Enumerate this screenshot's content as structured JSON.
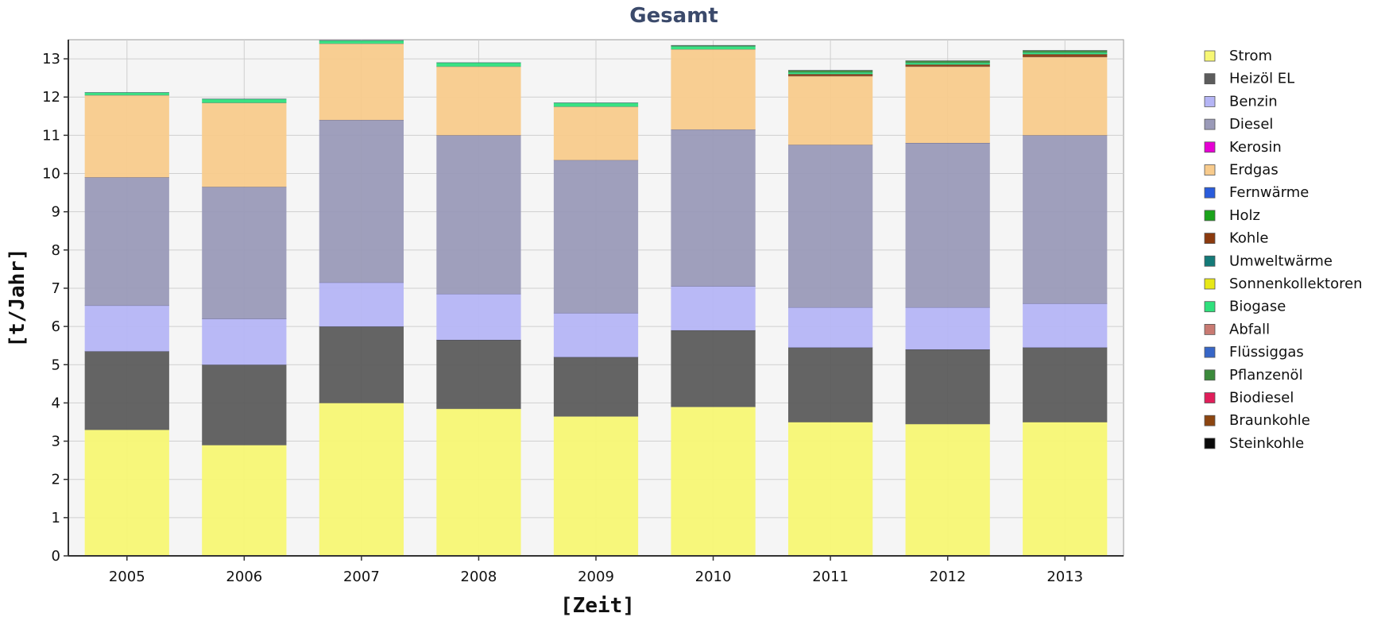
{
  "chart_data": {
    "type": "bar",
    "stacked": true,
    "title": "Gesamt",
    "xlabel": "[Zeit]",
    "ylabel": "[t/Jahr]",
    "ylim": [
      0,
      13.5
    ],
    "yticks": [
      0,
      1,
      2,
      3,
      4,
      5,
      6,
      7,
      8,
      9,
      10,
      11,
      12,
      13
    ],
    "grid": true,
    "legend_position": "right",
    "categories": [
      "2005",
      "2006",
      "2007",
      "2008",
      "2009",
      "2010",
      "2011",
      "2012",
      "2013"
    ],
    "series": [
      {
        "name": "Strom",
        "color": "#f7f774",
        "values": [
          3.3,
          2.9,
          4.0,
          3.85,
          3.65,
          3.9,
          3.5,
          3.45,
          3.5
        ]
      },
      {
        "name": "Heizöl EL",
        "color": "#5c5c5c",
        "values": [
          2.05,
          2.1,
          2.0,
          1.8,
          1.55,
          2.0,
          1.95,
          1.95,
          1.95
        ]
      },
      {
        "name": "Benzin",
        "color": "#b5b5f5",
        "values": [
          1.2,
          1.2,
          1.15,
          1.2,
          1.15,
          1.15,
          1.05,
          1.1,
          1.15
        ]
      },
      {
        "name": "Diesel",
        "color": "#9a9ab8",
        "values": [
          3.35,
          3.45,
          4.25,
          4.15,
          4.0,
          4.1,
          4.25,
          4.3,
          4.4
        ]
      },
      {
        "name": "Kerosin",
        "color": "#e600d4",
        "values": [
          0,
          0,
          0,
          0,
          0,
          0,
          0,
          0,
          0
        ]
      },
      {
        "name": "Erdgas",
        "color": "#f8cb8c",
        "values": [
          2.15,
          2.2,
          2.0,
          1.8,
          1.4,
          2.1,
          1.8,
          2.0,
          2.05
        ]
      },
      {
        "name": "Fernwärme",
        "color": "#2a5cdc",
        "values": [
          0,
          0,
          0,
          0,
          0,
          0,
          0,
          0,
          0
        ]
      },
      {
        "name": "Holz",
        "color": "#1aa31a",
        "values": [
          0,
          0,
          0,
          0,
          0,
          0,
          0,
          0,
          0
        ]
      },
      {
        "name": "Kohle",
        "color": "#8b3a0e",
        "values": [
          0,
          0,
          0,
          0,
          0,
          0,
          0.05,
          0.05,
          0.07
        ]
      },
      {
        "name": "Umweltwärme",
        "color": "#147a78",
        "values": [
          0,
          0,
          0,
          0,
          0,
          0,
          0,
          0,
          0
        ]
      },
      {
        "name": "Sonnenkollektoren",
        "color": "#e8e817",
        "values": [
          0,
          0,
          0,
          0,
          0,
          0,
          0,
          0,
          0
        ]
      },
      {
        "name": "Biogase",
        "color": "#2fe07c",
        "values": [
          0.07,
          0.1,
          0.08,
          0.1,
          0.1,
          0.08,
          0.05,
          0.05,
          0.05
        ]
      },
      {
        "name": "Abfall",
        "color": "#c97a72",
        "values": [
          0,
          0,
          0,
          0,
          0,
          0,
          0,
          0,
          0
        ]
      },
      {
        "name": "Flüssiggas",
        "color": "#3766c7",
        "values": [
          0,
          0,
          0,
          0,
          0,
          0,
          0,
          0,
          0
        ]
      },
      {
        "name": "Pflanzenöl",
        "color": "#3b8a3b",
        "values": [
          0,
          0,
          0,
          0,
          0,
          0.02,
          0.05,
          0.05,
          0.05
        ]
      },
      {
        "name": "Biodiesel",
        "color": "#e01e5a",
        "values": [
          0,
          0,
          0,
          0,
          0,
          0,
          0,
          0,
          0
        ]
      },
      {
        "name": "Braunkohle",
        "color": "#8c4510",
        "values": [
          0,
          0,
          0,
          0,
          0,
          0,
          0,
          0,
          0
        ]
      },
      {
        "name": "Steinkohle",
        "color": "#0a0a0a",
        "values": [
          0,
          0,
          0,
          0,
          0,
          0,
          0,
          0,
          0
        ]
      }
    ]
  }
}
